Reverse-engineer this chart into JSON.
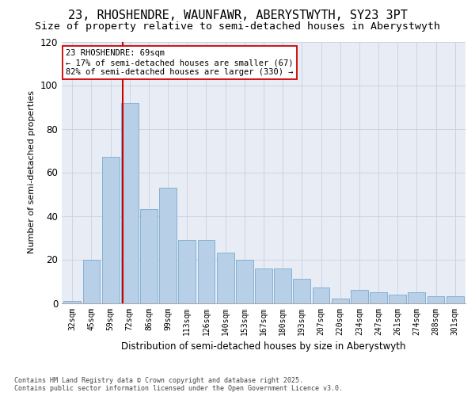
{
  "title1": "23, RHOSHENDRE, WAUNFAWR, ABERYSTWYTH, SY23 3PT",
  "title2": "Size of property relative to semi-detached houses in Aberystwyth",
  "xlabel": "Distribution of semi-detached houses by size in Aberystwyth",
  "ylabel": "Number of semi-detached properties",
  "bar_color": "#b8cfe8",
  "bar_edge_color": "#7aaad0",
  "background_color": "#e8edf5",
  "categories": [
    "32sqm",
    "45sqm",
    "59sqm",
    "72sqm",
    "86sqm",
    "99sqm",
    "113sqm",
    "126sqm",
    "140sqm",
    "153sqm",
    "167sqm",
    "180sqm",
    "193sqm",
    "207sqm",
    "220sqm",
    "234sqm",
    "247sqm",
    "261sqm",
    "274sqm",
    "288sqm",
    "301sqm"
  ],
  "bar_heights": [
    1,
    20,
    67,
    92,
    43,
    53,
    29,
    29,
    23,
    20,
    16,
    16,
    11,
    7,
    2,
    6,
    5,
    4,
    5,
    3,
    3
  ],
  "ylim": [
    0,
    120
  ],
  "yticks": [
    0,
    20,
    40,
    60,
    80,
    100,
    120
  ],
  "red_line_x": 2.65,
  "annotation_text": "23 RHOSHENDRE: 69sqm\n← 17% of semi-detached houses are smaller (67)\n82% of semi-detached houses are larger (330) →",
  "footer": "Contains HM Land Registry data © Crown copyright and database right 2025.\nContains public sector information licensed under the Open Government Licence v3.0.",
  "red_line_color": "#cc0000",
  "title_fontsize": 11,
  "subtitle_fontsize": 9.5
}
